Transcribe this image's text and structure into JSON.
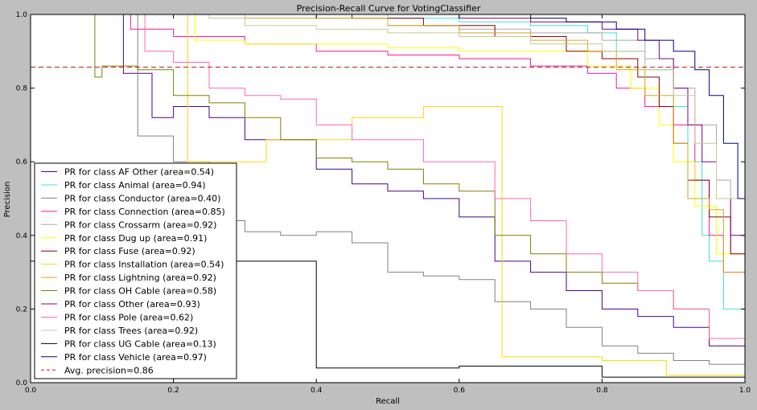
{
  "chart_data": {
    "type": "line",
    "title": "Precision-Recall Curve for VotingClassifier",
    "xlabel": "Recall",
    "ylabel": "Precision",
    "xlim": [
      0.0,
      1.0
    ],
    "ylim": [
      0.0,
      1.0
    ],
    "xticks": [
      "0.0",
      "0.2",
      "0.4",
      "0.6",
      "0.8",
      "1.0"
    ],
    "yticks": [
      "0.0",
      "0.2",
      "0.4",
      "0.6",
      "0.8",
      "1.0"
    ],
    "grid": false,
    "legend_position": "lower-left",
    "series": [
      {
        "name": "PR for class AF Other (area=0.54)",
        "color": "#4b0082",
        "points": [
          [
            0.0,
            1.0
          ],
          [
            0.12,
            1.0
          ],
          [
            0.13,
            0.84
          ],
          [
            0.15,
            0.84
          ],
          [
            0.17,
            0.72
          ],
          [
            0.2,
            0.75
          ],
          [
            0.25,
            0.72
          ],
          [
            0.3,
            0.66
          ],
          [
            0.35,
            0.66
          ],
          [
            0.4,
            0.58
          ],
          [
            0.45,
            0.54
          ],
          [
            0.5,
            0.52
          ],
          [
            0.55,
            0.5
          ],
          [
            0.6,
            0.45
          ],
          [
            0.65,
            0.33
          ],
          [
            0.7,
            0.3
          ],
          [
            0.75,
            0.25
          ],
          [
            0.8,
            0.2
          ],
          [
            0.85,
            0.18
          ],
          [
            0.9,
            0.15
          ],
          [
            0.95,
            0.1
          ],
          [
            1.0,
            0.08
          ]
        ]
      },
      {
        "name": "PR for class Animal (area=0.94)",
        "color": "#40e0d0",
        "points": [
          [
            0.0,
            1.0
          ],
          [
            0.5,
            0.99
          ],
          [
            0.6,
            0.98
          ],
          [
            0.7,
            0.97
          ],
          [
            0.78,
            0.95
          ],
          [
            0.82,
            0.9
          ],
          [
            0.86,
            0.85
          ],
          [
            0.9,
            0.75
          ],
          [
            0.92,
            0.6
          ],
          [
            0.94,
            0.4
          ],
          [
            0.95,
            0.33
          ],
          [
            0.97,
            0.2
          ],
          [
            1.0,
            0.14
          ]
        ]
      },
      {
        "name": "PR for class Conductor (area=0.40)",
        "color": "#808080",
        "points": [
          [
            0.0,
            1.0
          ],
          [
            0.14,
            1.0
          ],
          [
            0.15,
            0.67
          ],
          [
            0.17,
            0.67
          ],
          [
            0.2,
            0.6
          ],
          [
            0.25,
            0.44
          ],
          [
            0.3,
            0.41
          ],
          [
            0.35,
            0.4
          ],
          [
            0.4,
            0.41
          ],
          [
            0.45,
            0.38
          ],
          [
            0.5,
            0.3
          ],
          [
            0.55,
            0.29
          ],
          [
            0.6,
            0.28
          ],
          [
            0.65,
            0.22
          ],
          [
            0.7,
            0.2
          ],
          [
            0.75,
            0.15
          ],
          [
            0.8,
            0.1
          ],
          [
            0.85,
            0.08
          ],
          [
            0.9,
            0.06
          ],
          [
            0.95,
            0.05
          ],
          [
            1.0,
            0.04
          ]
        ]
      },
      {
        "name": "PR for class Connection (area=0.85)",
        "color": "#ff1493",
        "points": [
          [
            0.0,
            1.0
          ],
          [
            0.13,
            1.0
          ],
          [
            0.14,
            0.96
          ],
          [
            0.2,
            0.94
          ],
          [
            0.3,
            0.92
          ],
          [
            0.4,
            0.9
          ],
          [
            0.5,
            0.89
          ],
          [
            0.6,
            0.88
          ],
          [
            0.7,
            0.86
          ],
          [
            0.78,
            0.84
          ],
          [
            0.82,
            0.8
          ],
          [
            0.86,
            0.75
          ],
          [
            0.9,
            0.7
          ],
          [
            0.93,
            0.55
          ],
          [
            0.95,
            0.4
          ],
          [
            0.97,
            0.3
          ],
          [
            1.0,
            0.2
          ]
        ]
      },
      {
        "name": "PR for class Crossarm (area=0.92)",
        "color": "#a9a9a9",
        "points": [
          [
            0.0,
            1.0
          ],
          [
            0.4,
            0.99
          ],
          [
            0.5,
            0.97
          ],
          [
            0.6,
            0.96
          ],
          [
            0.7,
            0.95
          ],
          [
            0.8,
            0.93
          ],
          [
            0.86,
            0.88
          ],
          [
            0.9,
            0.8
          ],
          [
            0.93,
            0.7
          ],
          [
            0.96,
            0.55
          ],
          [
            0.98,
            0.35
          ],
          [
            1.0,
            0.25
          ]
        ]
      },
      {
        "name": "PR for class Dug up (area=0.91)",
        "color": "#ffff00",
        "points": [
          [
            0.0,
            1.0
          ],
          [
            0.22,
            1.0
          ],
          [
            0.23,
            0.93
          ],
          [
            0.3,
            0.92
          ],
          [
            0.4,
            0.92
          ],
          [
            0.5,
            0.91
          ],
          [
            0.6,
            0.9
          ],
          [
            0.7,
            0.9
          ],
          [
            0.78,
            0.86
          ],
          [
            0.84,
            0.8
          ],
          [
            0.88,
            0.7
          ],
          [
            0.9,
            0.6
          ],
          [
            0.93,
            0.48
          ],
          [
            0.96,
            0.35
          ],
          [
            1.0,
            0.2
          ]
        ]
      },
      {
        "name": "PR for class Fuse (area=0.92)",
        "color": "#8b0000",
        "points": [
          [
            0.0,
            1.0
          ],
          [
            0.45,
            0.99
          ],
          [
            0.55,
            0.97
          ],
          [
            0.65,
            0.94
          ],
          [
            0.75,
            0.9
          ],
          [
            0.8,
            0.88
          ],
          [
            0.85,
            0.83
          ],
          [
            0.88,
            0.75
          ],
          [
            0.9,
            0.65
          ],
          [
            0.92,
            0.55
          ],
          [
            0.95,
            0.45
          ],
          [
            0.98,
            0.35
          ],
          [
            1.0,
            0.3
          ]
        ]
      },
      {
        "name": "PR for class Installation (area=0.54)",
        "color": "#ffd700",
        "points": [
          [
            0.0,
            1.0
          ],
          [
            0.22,
            1.0
          ],
          [
            0.22,
            0.6
          ],
          [
            0.33,
            0.6
          ],
          [
            0.33,
            0.66
          ],
          [
            0.45,
            0.66
          ],
          [
            0.45,
            0.72
          ],
          [
            0.55,
            0.72
          ],
          [
            0.55,
            0.75
          ],
          [
            0.66,
            0.75
          ],
          [
            0.66,
            0.07
          ],
          [
            0.8,
            0.07
          ],
          [
            0.8,
            0.06
          ],
          [
            0.89,
            0.06
          ],
          [
            0.89,
            0.02
          ],
          [
            1.0,
            0.02
          ]
        ]
      },
      {
        "name": "PR for class Lightning (area=0.92)",
        "color": "#daa520",
        "points": [
          [
            0.0,
            1.0
          ],
          [
            0.3,
            0.99
          ],
          [
            0.5,
            0.97
          ],
          [
            0.6,
            0.95
          ],
          [
            0.7,
            0.93
          ],
          [
            0.78,
            0.9
          ],
          [
            0.82,
            0.85
          ],
          [
            0.86,
            0.78
          ],
          [
            0.9,
            0.65
          ],
          [
            0.92,
            0.5
          ],
          [
            0.95,
            0.47
          ],
          [
            0.97,
            0.3
          ],
          [
            1.0,
            0.2
          ]
        ]
      },
      {
        "name": "PR for class OH Cable (area=0.58)",
        "color": "#808000",
        "points": [
          [
            0.0,
            1.0
          ],
          [
            0.09,
            1.0
          ],
          [
            0.09,
            0.83
          ],
          [
            0.1,
            0.86
          ],
          [
            0.15,
            0.85
          ],
          [
            0.2,
            0.78
          ],
          [
            0.25,
            0.76
          ],
          [
            0.3,
            0.72
          ],
          [
            0.35,
            0.66
          ],
          [
            0.4,
            0.61
          ],
          [
            0.45,
            0.6
          ],
          [
            0.5,
            0.58
          ],
          [
            0.55,
            0.54
          ],
          [
            0.6,
            0.52
          ],
          [
            0.65,
            0.4
          ],
          [
            0.7,
            0.35
          ],
          [
            0.75,
            0.3
          ],
          [
            0.8,
            0.27
          ],
          [
            0.85,
            0.25
          ],
          [
            0.9,
            0.2
          ],
          [
            0.95,
            0.12
          ],
          [
            1.0,
            0.08
          ]
        ]
      },
      {
        "name": "PR for class Other (area=0.93)",
        "color": "#800080",
        "points": [
          [
            0.0,
            1.0
          ],
          [
            0.5,
            1.0
          ],
          [
            0.6,
            0.99
          ],
          [
            0.7,
            0.98
          ],
          [
            0.8,
            0.96
          ],
          [
            0.85,
            0.93
          ],
          [
            0.88,
            0.88
          ],
          [
            0.9,
            0.8
          ],
          [
            0.92,
            0.7
          ],
          [
            0.94,
            0.6
          ],
          [
            0.96,
            0.5
          ],
          [
            0.98,
            0.4
          ],
          [
            1.0,
            0.35
          ]
        ]
      },
      {
        "name": "PR for class Pole (area=0.62)",
        "color": "#ff69b4",
        "points": [
          [
            0.0,
            1.0
          ],
          [
            0.15,
            1.0
          ],
          [
            0.16,
            0.9
          ],
          [
            0.2,
            0.87
          ],
          [
            0.25,
            0.8
          ],
          [
            0.3,
            0.78
          ],
          [
            0.35,
            0.77
          ],
          [
            0.4,
            0.7
          ],
          [
            0.45,
            0.66
          ],
          [
            0.5,
            0.66
          ],
          [
            0.55,
            0.6
          ],
          [
            0.6,
            0.6
          ],
          [
            0.65,
            0.5
          ],
          [
            0.7,
            0.44
          ],
          [
            0.75,
            0.35
          ],
          [
            0.8,
            0.3
          ],
          [
            0.85,
            0.25
          ],
          [
            0.9,
            0.2
          ],
          [
            0.95,
            0.12
          ],
          [
            1.0,
            0.06
          ]
        ]
      },
      {
        "name": "PR for class Trees (area=0.92)",
        "color": "#c8c896",
        "points": [
          [
            0.0,
            1.0
          ],
          [
            0.25,
            0.99
          ],
          [
            0.3,
            0.97
          ],
          [
            0.4,
            0.96
          ],
          [
            0.5,
            0.95
          ],
          [
            0.6,
            0.94
          ],
          [
            0.7,
            0.92
          ],
          [
            0.8,
            0.9
          ],
          [
            0.86,
            0.85
          ],
          [
            0.9,
            0.78
          ],
          [
            0.93,
            0.65
          ],
          [
            0.96,
            0.5
          ],
          [
            1.0,
            0.3
          ]
        ]
      },
      {
        "name": "PR for class UG Cable (area=0.13)",
        "color": "#000000",
        "points": [
          [
            0.0,
            0.33
          ],
          [
            0.4,
            0.33
          ],
          [
            0.4,
            0.04
          ],
          [
            0.6,
            0.04
          ],
          [
            0.6,
            0.045
          ],
          [
            0.8,
            0.045
          ],
          [
            0.8,
            0.015
          ],
          [
            1.0,
            0.015
          ]
        ]
      },
      {
        "name": "PR for class Vehicle (area=0.97)",
        "color": "#000080",
        "points": [
          [
            0.0,
            1.0
          ],
          [
            0.6,
            1.0
          ],
          [
            0.7,
            0.99
          ],
          [
            0.75,
            0.98
          ],
          [
            0.82,
            0.96
          ],
          [
            0.86,
            0.93
          ],
          [
            0.9,
            0.9
          ],
          [
            0.93,
            0.85
          ],
          [
            0.95,
            0.78
          ],
          [
            0.97,
            0.65
          ],
          [
            0.99,
            0.5
          ],
          [
            1.0,
            0.3
          ]
        ]
      }
    ],
    "reference_line": {
      "name": "Avg. precision=0.86",
      "y": 0.857,
      "color": "#b22222",
      "style": "dashed"
    }
  }
}
